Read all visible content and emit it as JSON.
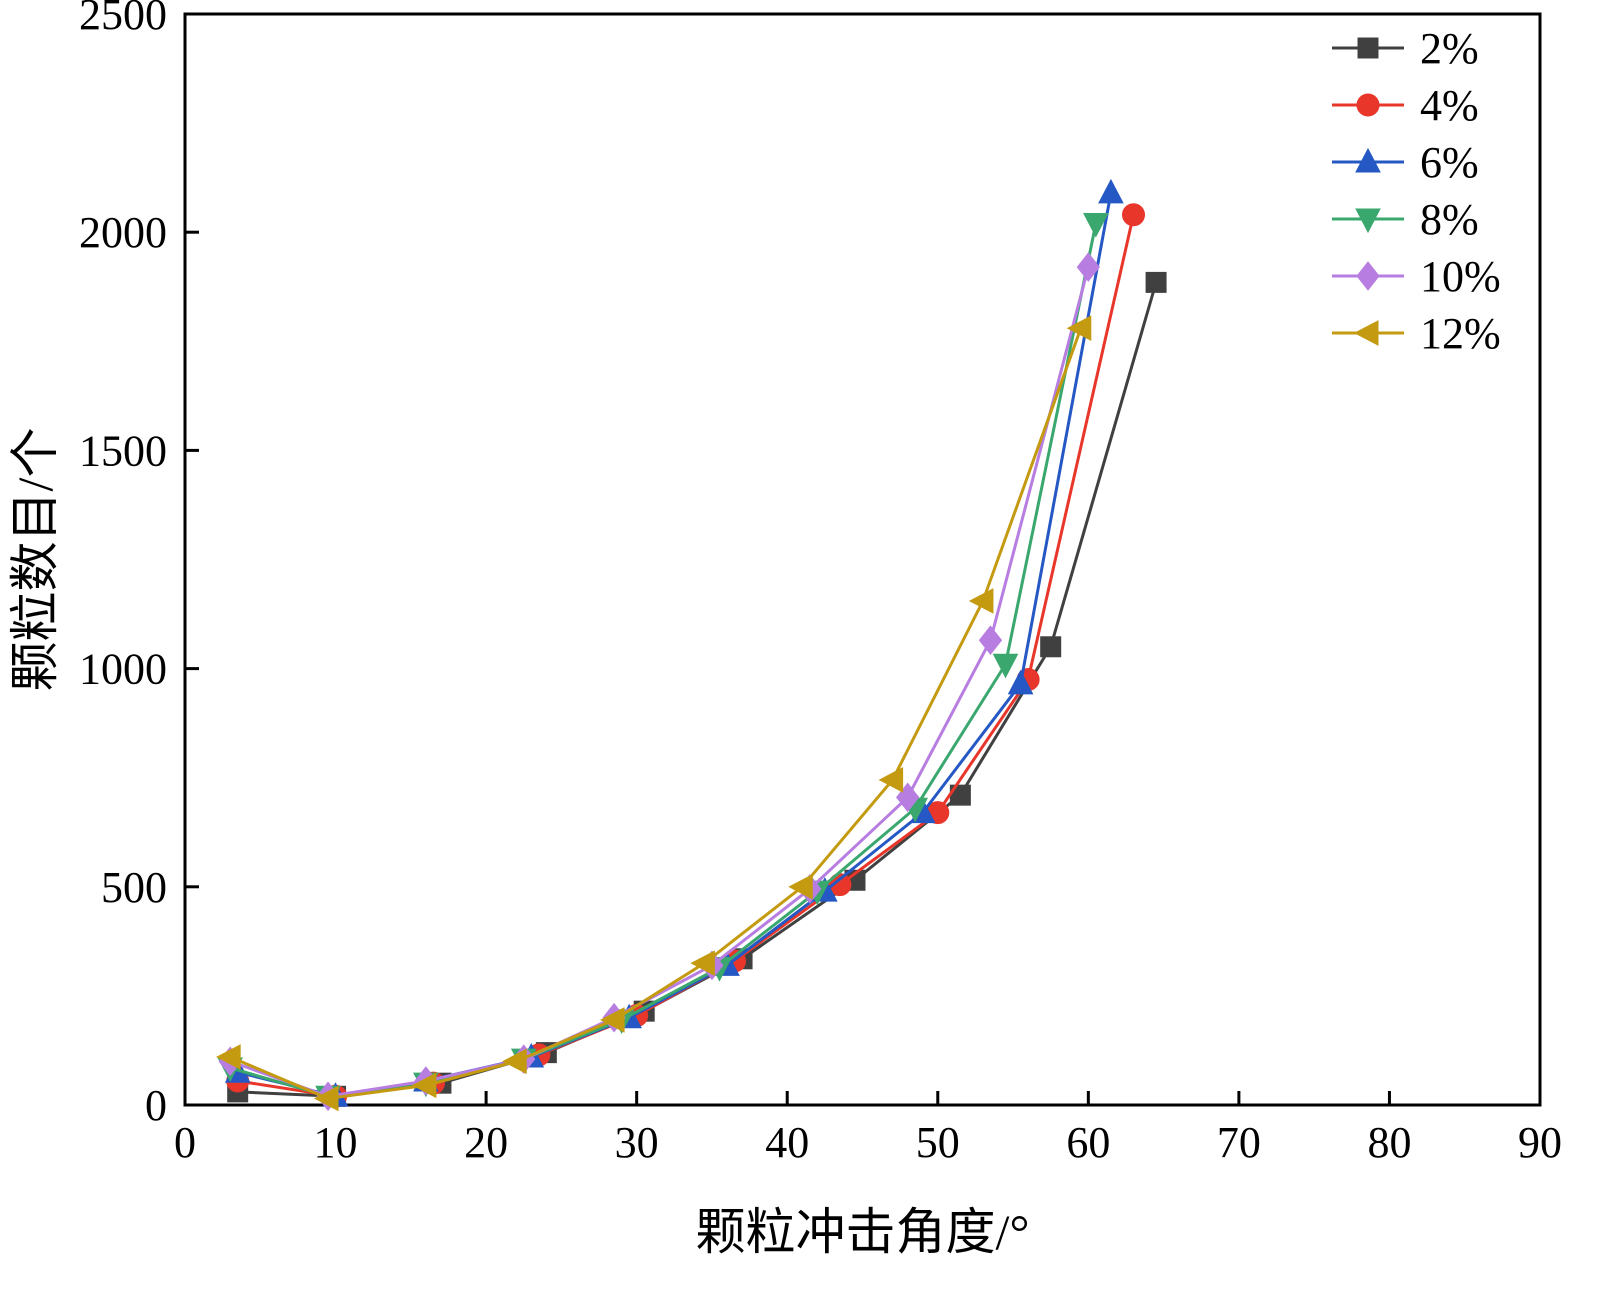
{
  "chart_data": {
    "type": "line",
    "title": "",
    "xlabel": "颗粒冲击角度/°",
    "ylabel": "颗粒数目/个",
    "xlim": [
      0,
      90
    ],
    "ylim": [
      0,
      2500
    ],
    "x_ticks": [
      0,
      10,
      20,
      30,
      40,
      50,
      60,
      70,
      80,
      90
    ],
    "y_ticks": [
      0,
      500,
      1000,
      1500,
      2000,
      2500
    ],
    "grid": false,
    "legend_position": "top-right-inside",
    "axis_color": "#000000",
    "series": [
      {
        "name": "2%",
        "color": "#404040",
        "marker": "square",
        "x": [
          3.5,
          10,
          17,
          24,
          30.5,
          37,
          44.5,
          51.5,
          57.5,
          64.5
        ],
        "y": [
          30,
          20,
          50,
          120,
          215,
          335,
          515,
          710,
          1050,
          1885
        ]
      },
      {
        "name": "4%",
        "color": "#e8362b",
        "marker": "circle",
        "x": [
          3.5,
          10,
          16.5,
          23.5,
          30,
          36.5,
          43.5,
          50,
          56,
          63
        ],
        "y": [
          55,
          20,
          50,
          115,
          205,
          330,
          505,
          670,
          975,
          2040
        ]
      },
      {
        "name": "6%",
        "color": "#2558c4",
        "marker": "triangle-up",
        "x": [
          3.5,
          10,
          16,
          23,
          29.5,
          36,
          42.5,
          49,
          55.5,
          61.5
        ],
        "y": [
          75,
          20,
          55,
          110,
          200,
          320,
          490,
          670,
          965,
          2090
        ]
      },
      {
        "name": "8%",
        "color": "#3aa86e",
        "marker": "triangle-down",
        "x": [
          3,
          9.5,
          16,
          22.5,
          29,
          35.5,
          42,
          48.5,
          54.5,
          60.5
        ],
        "y": [
          85,
          20,
          50,
          105,
          195,
          315,
          490,
          680,
          1010,
          2020
        ]
      },
      {
        "name": "10%",
        "color": "#b77de0",
        "marker": "diamond",
        "x": [
          3,
          9.5,
          16,
          22.5,
          28.5,
          35,
          41.5,
          48,
          53.5,
          60
        ],
        "y": [
          100,
          20,
          55,
          105,
          200,
          320,
          495,
          705,
          1065,
          1920
        ]
      },
      {
        "name": "12%",
        "color": "#c49a10",
        "marker": "triangle-left",
        "x": [
          3,
          9.5,
          16,
          22,
          28.5,
          34.5,
          41,
          47,
          53,
          59.5
        ],
        "y": [
          110,
          15,
          45,
          100,
          195,
          325,
          500,
          745,
          1155,
          1780
        ]
      }
    ]
  }
}
